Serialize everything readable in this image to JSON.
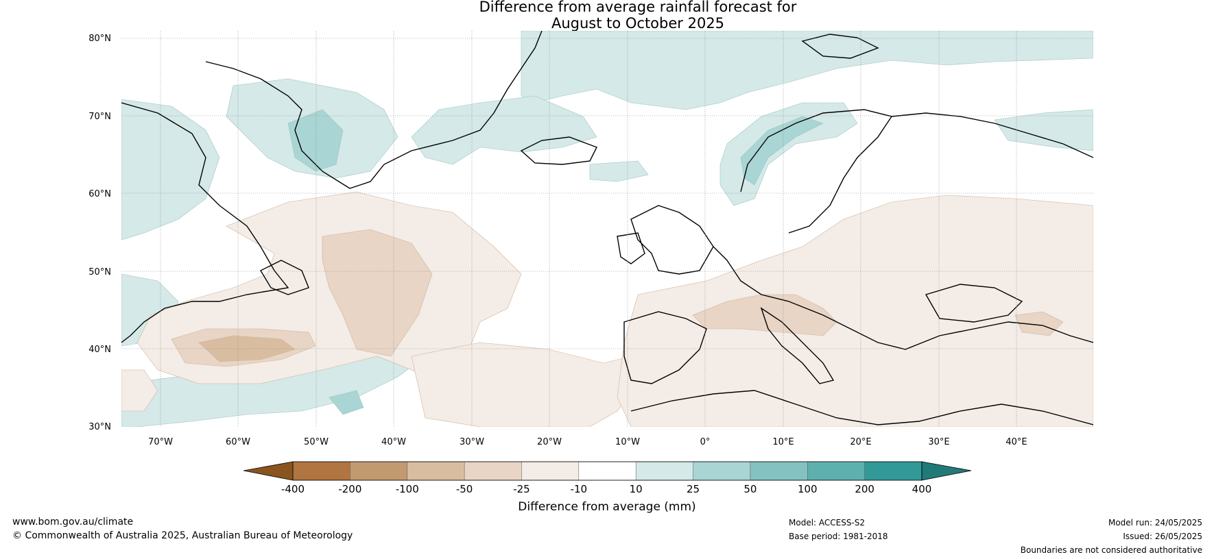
{
  "title": {
    "line1": "Difference from average rainfall forecast for",
    "line2": "August to October 2025"
  },
  "map": {
    "region": "North Atlantic and Europe",
    "lat_labels": [
      "80°N",
      "70°N",
      "60°N",
      "50°N",
      "40°N",
      "30°N"
    ],
    "lon_labels": [
      "70°W",
      "60°W",
      "50°W",
      "40°W",
      "30°W",
      "20°W",
      "10°W",
      "0°",
      "10°E",
      "20°E",
      "30°E",
      "40°E"
    ],
    "colors": {
      "dry_-400": "#8a541f",
      "dry_-200": "#b07540",
      "dry_-100": "#c29a70",
      "dry_-50": "#d9bda0",
      "dry_-25": "#e8d5c5",
      "dry_-10": "#f4ece6",
      "neutral": "#ffffff",
      "wet_10": "#d4e9e8",
      "wet_25": "#a9d5d4",
      "wet_50": "#83c2c0",
      "wet_100": "#5eb0ae",
      "wet_200": "#319a98",
      "wet_400": "#217a78"
    }
  },
  "colorbar": {
    "ticks": [
      "-400",
      "-200",
      "-100",
      "-50",
      "-25",
      "-10",
      "10",
      "25",
      "50",
      "100",
      "200",
      "400"
    ],
    "colors": [
      "#8a541f",
      "#b07540",
      "#c29a70",
      "#d9bda0",
      "#e8d5c5",
      "#f4ece6",
      "#ffffff",
      "#d4e9e8",
      "#a9d5d4",
      "#83c2c0",
      "#5eb0ae",
      "#319a98",
      "#217a78"
    ],
    "label": "Difference from average (mm)"
  },
  "footer": {
    "website": "www.bom.gov.au/climate",
    "copyright": "© Commonwealth of Australia 2025, Australian Bureau of Meteorology",
    "model": "Model: ACCESS-S2",
    "base_period": "Base period: 1981-2018",
    "model_run": "Model run: 24/05/2025",
    "issued": "Issued: 26/05/2025",
    "disclaimer": "Boundaries are not considered authoritative"
  }
}
